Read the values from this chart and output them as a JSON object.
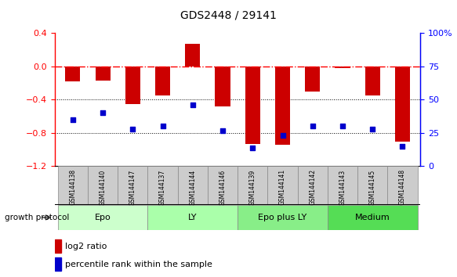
{
  "title": "GDS2448 / 29141",
  "samples": [
    "GSM144138",
    "GSM144140",
    "GSM144147",
    "GSM144137",
    "GSM144144",
    "GSM144146",
    "GSM144139",
    "GSM144141",
    "GSM144142",
    "GSM144143",
    "GSM144145",
    "GSM144148"
  ],
  "log2_ratio": [
    -0.18,
    -0.17,
    -0.45,
    -0.35,
    0.27,
    -0.48,
    -0.93,
    -0.94,
    -0.3,
    -0.02,
    -0.35,
    -0.9
  ],
  "percentile_rank": [
    35,
    40,
    28,
    30,
    46,
    27,
    14,
    23,
    30,
    30,
    28,
    15
  ],
  "groups": [
    {
      "label": "Epo",
      "start": 0,
      "end": 3,
      "color": "#ccffcc"
    },
    {
      "label": "LY",
      "start": 3,
      "end": 6,
      "color": "#aaffaa"
    },
    {
      "label": "Epo plus LY",
      "start": 6,
      "end": 9,
      "color": "#88ee88"
    },
    {
      "label": "Medium",
      "start": 9,
      "end": 12,
      "color": "#55dd55"
    }
  ],
  "ylim_left": [
    -1.2,
    0.4
  ],
  "ylim_right": [
    0,
    100
  ],
  "yticks_left": [
    -1.2,
    -0.8,
    -0.4,
    0.0,
    0.4
  ],
  "yticks_right": [
    0,
    25,
    50,
    75,
    100
  ],
  "bar_color": "#cc0000",
  "dot_color": "#0000cc",
  "bar_width": 0.5,
  "growth_protocol_label": "growth protocol",
  "legend_bar_label": "log2 ratio",
  "legend_dot_label": "percentile rank within the sample",
  "background_color": "#ffffff",
  "sample_box_color": "#cccccc",
  "group_colors_alt": [
    "#ccffcc",
    "#aaffaa",
    "#77dd77",
    "#44cc44"
  ]
}
